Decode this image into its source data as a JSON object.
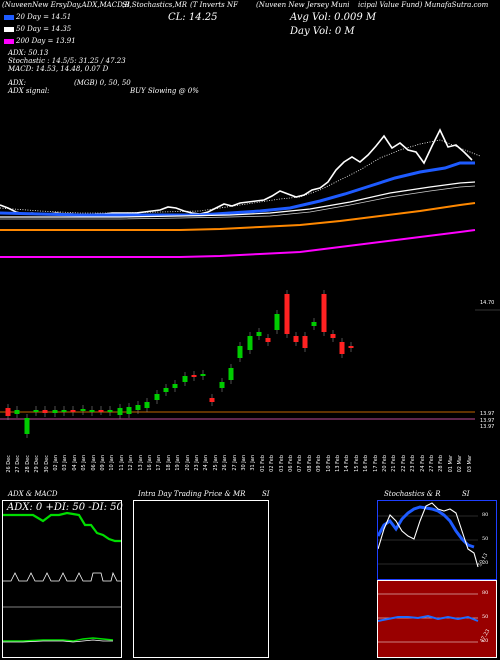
{
  "header": {
    "line1": "(NuveenNew ErsyDay,ADX,MACD,B",
    "line1b": "SI,Stochastics,MR",
    "line1c": "(T Inverts NF",
    "line1d": "(Nuveen New Jersey Muni",
    "line1e": "icipal Value Fund) MunafaSutra.com",
    "cl_label": "CL: 14.25",
    "avg_vol": "Avg Vol: 0.009 M",
    "day_vol": "Day Vol: 0   M",
    "ema20": "20 Day = 14.51",
    "ema50": "50 Day = 14.35",
    "ema200": "200 Day = 13.91",
    "rsi_line": "ADX: 50.13",
    "bands": "Stochastic : 14.5/5: 31.25 / 47.23",
    "macd": "MACD: 14.53, 14.48, 0.07 D",
    "adx": "ADX:",
    "adx_signal": "ADX  signal:",
    "mrsi": "(MGB) 0, 50,  50",
    "buy": "BUY Slowing @ 0%"
  },
  "price_labels": {
    "p1": "14.70",
    "p2": "13.97",
    "p3": "13.97",
    "p4": "13.97"
  },
  "x_labels": [
    "26 Dec",
    "27 Dec",
    "28 Dec",
    "29 Dec",
    "30 Dec",
    "02 Jan",
    "03 Jan",
    "04 Jan",
    "05 Jan",
    "06 Jan",
    "09 Jan",
    "10 Jan",
    "11 Jan",
    "12 Jan",
    "13 Jan",
    "16 Jan",
    "17 Jan",
    "18 Jan",
    "19 Jan",
    "20 Jan",
    "23 Jan",
    "24 Jan",
    "25 Jan",
    "26 Jan",
    "27 Jan",
    "30 Jan",
    "31 Jan",
    "01 Feb",
    "02 Feb",
    "03 Feb",
    "06 Feb",
    "07 Feb",
    "08 Feb",
    "09 Feb",
    "10 Feb",
    "13 Feb",
    "14 Feb",
    "15 Feb",
    "16 Feb",
    "17 Feb",
    "20 Feb",
    "21 Feb",
    "22 Feb",
    "23 Feb",
    "24 Feb",
    "27 Feb",
    "28 Feb",
    "01 Mar",
    "02 Mar",
    "03 Mar"
  ],
  "panels": {
    "adx_title": "ADX  & MACD",
    "adx_vals": "ADX: 0  +DI: 50  -DI: 50",
    "intra_title": "Intra  Day Trading Price  & MR",
    "intra_si": "SI",
    "stoch_title": "Stochastics & R",
    "stoch_si": "SI",
    "stoch_val": "50.13",
    "rsi_levels": [
      "80",
      "50",
      "20"
    ],
    "mrsi_levels": [
      "80",
      "50",
      "20"
    ],
    "mrsi_val": "47.23"
  },
  "colors": {
    "ema20": "#1e5bff",
    "ema50": "#ffffff",
    "ema200": "#ff00ff",
    "orange": "#ff8800",
    "up": "#00cc00",
    "down": "#ff2222"
  }
}
